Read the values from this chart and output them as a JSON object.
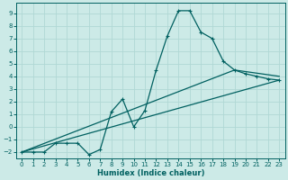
{
  "xlabel": "Humidex (Indice chaleur)",
  "bg_color": "#cceae7",
  "grid_color": "#b0d8d4",
  "line_color": "#006060",
  "xlim": [
    -0.5,
    23.5
  ],
  "ylim": [
    -2.5,
    9.8
  ],
  "xticks": [
    0,
    1,
    2,
    3,
    4,
    5,
    6,
    7,
    8,
    9,
    10,
    11,
    12,
    13,
    14,
    15,
    16,
    17,
    18,
    19,
    20,
    21,
    22,
    23
  ],
  "yticks": [
    -2,
    -1,
    0,
    1,
    2,
    3,
    4,
    5,
    6,
    7,
    8,
    9
  ],
  "series1_x": [
    0,
    1,
    2,
    3,
    4,
    5,
    6,
    7,
    8,
    9,
    10,
    11,
    12,
    13,
    14,
    15,
    16,
    17,
    18,
    19,
    20,
    21,
    22,
    23
  ],
  "series1_y": [
    -2,
    -2,
    -2,
    -1.3,
    -1.3,
    -1.3,
    -2.2,
    -1.8,
    1.2,
    2.2,
    0.0,
    1.3,
    4.5,
    7.2,
    9.2,
    9.2,
    7.5,
    7.0,
    5.2,
    4.5,
    4.2,
    4.0,
    3.8,
    3.7
  ],
  "series2_x": [
    0,
    19,
    23
  ],
  "series2_y": [
    -2,
    4.5,
    4.0
  ],
  "series3_x": [
    0,
    23
  ],
  "series3_y": [
    -2,
    3.7
  ]
}
